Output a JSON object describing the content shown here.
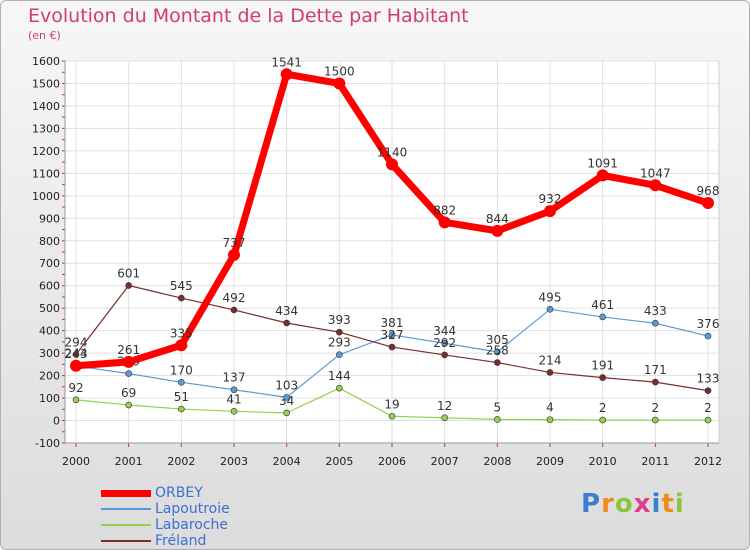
{
  "title": "Evolution du Montant de la Dette par Habitant",
  "subtitle": "(en €)",
  "logo": "Proxiti",
  "chart_data": {
    "type": "line",
    "x": [
      2000,
      2001,
      2002,
      2003,
      2004,
      2005,
      2006,
      2007,
      2008,
      2009,
      2010,
      2011,
      2012
    ],
    "ylim": [
      -100,
      1600
    ],
    "yticks": [
      -100,
      0,
      100,
      200,
      300,
      400,
      500,
      600,
      700,
      800,
      900,
      1000,
      1100,
      1200,
      1300,
      1400,
      1500,
      1600
    ],
    "grid": true,
    "legend_position": "bottom-left",
    "series": [
      {
        "name": "ORBEY",
        "color": "#ff0000",
        "values": [
          244,
          261,
          335,
          737,
          1541,
          1500,
          1140,
          882,
          844,
          932,
          1091,
          1047,
          968
        ]
      },
      {
        "name": "Lapoutroie",
        "color": "#5b9bd5",
        "values": [
          243,
          209,
          170,
          137,
          103,
          293,
          381,
          344,
          305,
          495,
          461,
          433,
          376
        ]
      },
      {
        "name": "Labaroche",
        "color": "#92d050",
        "values": [
          92,
          69,
          51,
          41,
          34,
          144,
          19,
          12,
          5,
          4,
          2,
          2,
          2
        ]
      },
      {
        "name": "Fréland",
        "color": "#7b2c2c",
        "values": [
          294,
          601,
          545,
          492,
          434,
          393,
          327,
          292,
          258,
          214,
          191,
          171,
          133
        ]
      }
    ]
  }
}
